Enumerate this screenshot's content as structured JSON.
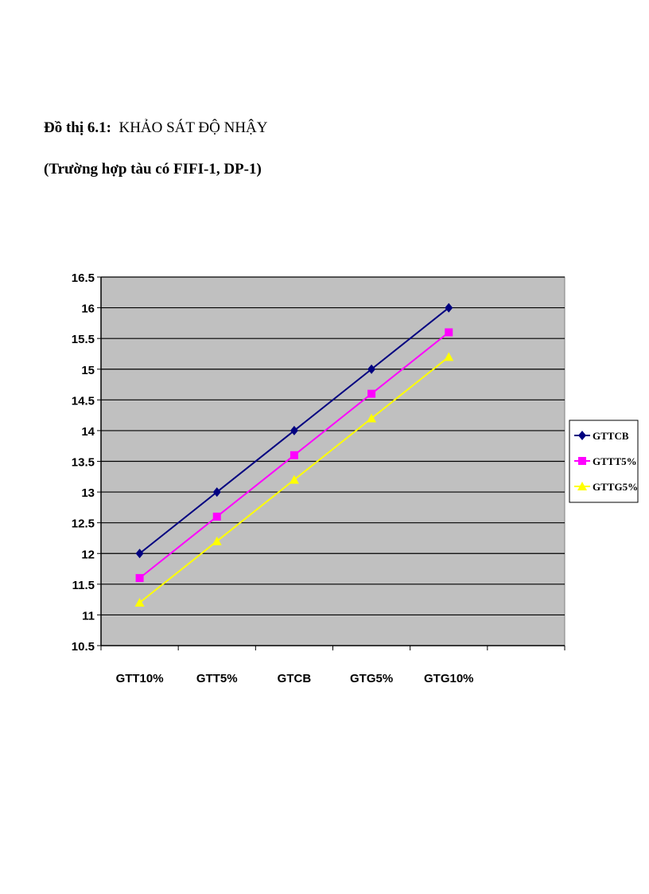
{
  "caption": {
    "line1_label": "Đồ thị 6.1:",
    "line1_text": "KHẢO SÁT ĐỘ NHẬY",
    "line2": "(Trường hợp tàu có FIFI-1, DP-1)"
  },
  "chart_data": {
    "type": "line",
    "title": "",
    "xlabel": "",
    "ylabel": "",
    "categories": [
      "GTT10%",
      "GTT5%",
      "GTCB",
      "GTG5%",
      "GTG10%"
    ],
    "ylim": [
      10.5,
      16.5
    ],
    "ytick_step": 0.5,
    "grid": true,
    "legend_position": "right",
    "plot_background": "#c0c0c0",
    "series": [
      {
        "name": "GTTCB",
        "values": [
          12,
          13,
          14,
          15,
          16
        ],
        "color": "#000080",
        "marker": "diamond"
      },
      {
        "name": "GTTT5%",
        "values": [
          11.6,
          12.6,
          13.6,
          14.6,
          15.6
        ],
        "color": "#ff00ff",
        "marker": "square"
      },
      {
        "name": "GTTG5%",
        "values": [
          11.2,
          12.2,
          13.2,
          14.2,
          15.2
        ],
        "color": "#ffff00",
        "marker": "triangle"
      }
    ]
  }
}
